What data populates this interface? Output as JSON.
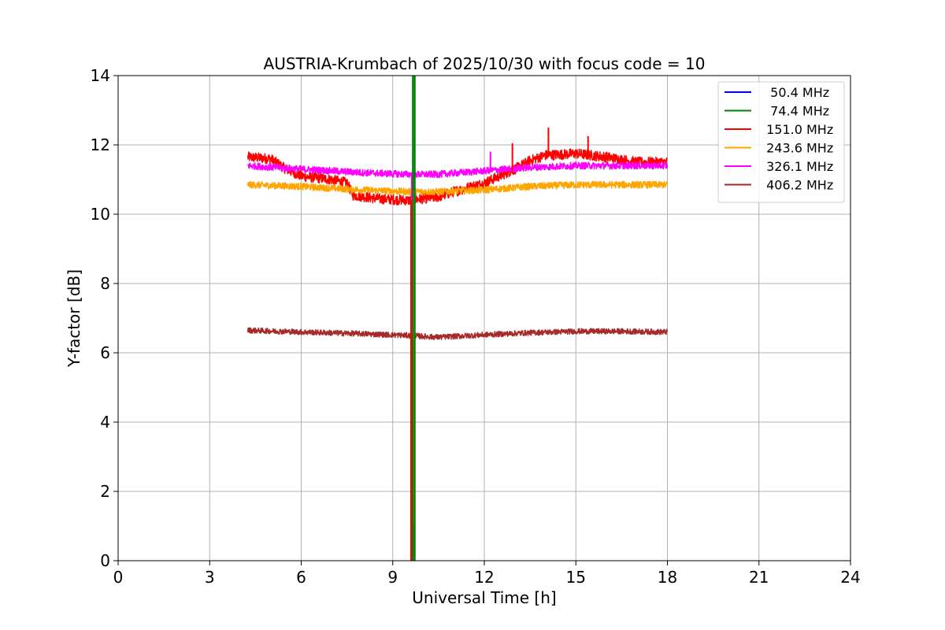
{
  "chart_data": {
    "type": "line",
    "title": "AUSTRIA-Krumbach of 2025/10/30 with focus code = 10",
    "xlabel": "Universal Time [h]",
    "ylabel": "Y-factor [dB]",
    "xlim": [
      0,
      24
    ],
    "ylim": [
      0,
      14
    ],
    "xticks": [
      0,
      3,
      6,
      9,
      12,
      15,
      18,
      21,
      24
    ],
    "yticks": [
      0,
      2,
      4,
      6,
      8,
      10,
      12,
      14
    ],
    "grid": true,
    "legend_position": "top-right",
    "series": [
      {
        "name": "  50.4 MHz",
        "color": "#0000ff",
        "x": [],
        "y": []
      },
      {
        "name": "  74.4 MHz",
        "color": "#008000",
        "x": [
          9.66,
          9.66,
          9.72,
          9.72
        ],
        "y": [
          0,
          14,
          14,
          0
        ]
      },
      {
        "name": " 151.0 MHz",
        "color": "#ff0000",
        "noise": 0.15,
        "x": [
          4.25,
          5.0,
          5.5,
          6.0,
          7.0,
          7.5,
          7.7,
          8.5,
          9.5,
          10.0,
          10.5,
          11.0,
          12.0,
          13.0,
          13.5,
          14.0,
          15.0,
          16.0,
          17.0,
          18.0
        ],
        "y": [
          11.65,
          11.6,
          11.3,
          11.1,
          11.0,
          10.9,
          10.55,
          10.45,
          10.4,
          10.45,
          10.5,
          10.65,
          10.9,
          11.3,
          11.55,
          11.7,
          11.75,
          11.65,
          11.5,
          11.5
        ]
      },
      {
        "name": " 243.6 MHz",
        "color": "#ffa500",
        "noise": 0.1,
        "x": [
          4.25,
          6.0,
          8.0,
          9.5,
          10.5,
          12.0,
          13.5,
          15.0,
          16.5,
          18.0
        ],
        "y": [
          10.85,
          10.8,
          10.7,
          10.65,
          10.65,
          10.7,
          10.8,
          10.85,
          10.85,
          10.85
        ]
      },
      {
        "name": " 326.1 MHz",
        "color": "#ff00ff",
        "noise": 0.1,
        "x": [
          4.25,
          6.0,
          8.0,
          9.5,
          10.5,
          12.0,
          13.5,
          15.0,
          16.5,
          18.0
        ],
        "y": [
          11.4,
          11.3,
          11.2,
          11.15,
          11.15,
          11.25,
          11.35,
          11.4,
          11.4,
          11.4
        ]
      },
      {
        "name": " 406.2 MHz",
        "color": "#a52a2a",
        "noise": 0.08,
        "x": [
          4.25,
          6.0,
          8.0,
          9.5,
          10.5,
          12.0,
          13.5,
          15.0,
          16.5,
          18.0
        ],
        "y": [
          6.65,
          6.6,
          6.55,
          6.5,
          6.45,
          6.52,
          6.58,
          6.62,
          6.62,
          6.6
        ]
      }
    ],
    "spikes": [
      {
        "series": " 151.0 MHz",
        "x": 12.92,
        "y": 12.05
      },
      {
        "series": " 151.0 MHz",
        "x": 14.1,
        "y": 12.5
      },
      {
        "series": " 151.0 MHz",
        "x": 15.4,
        "y": 12.25
      },
      {
        "series": " 326.1 MHz",
        "x": 12.2,
        "y": 11.8
      }
    ],
    "vertical_drops": [
      {
        "series": " 326.1 MHz",
        "x": 9.62,
        "y_from": 11.2,
        "y_to": 1.0
      },
      {
        "series": " 243.6 MHz",
        "x": 9.68,
        "y_from": 10.7,
        "y_to": 1.1
      },
      {
        "series": " 406.2 MHz",
        "x": 9.65,
        "y_from": 6.5,
        "y_to": 0.0
      },
      {
        "series": " 151.0 MHz",
        "x": 9.6,
        "y_from": 10.4,
        "y_to": 0.0
      }
    ]
  }
}
